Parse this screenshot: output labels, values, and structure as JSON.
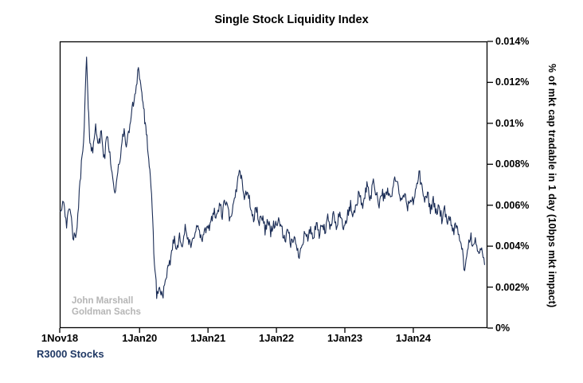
{
  "title": "Single Stock Liquidity Index",
  "y_axis": {
    "title": "% of mkt cap tradable in 1 day (10bps mkt impact)"
  },
  "annotation": {
    "line1": "John Marshall",
    "line2": "Goldman Sachs"
  },
  "footer": {
    "label": "R3000 Stocks"
  },
  "colors": {
    "line": "#1a2c55",
    "axis": "#000000",
    "annotation": "#b5b5b5",
    "footer": "#1f3864",
    "background": "#ffffff"
  },
  "chart_data": {
    "type": "line",
    "title": "Single Stock Liquidity Index",
    "series_name": "R3000 Stocks",
    "xlabel": "",
    "ylabel": "% of mkt cap tradable in 1 day (10bps mkt impact)",
    "x_unit": "months since 1 Nov 2018",
    "x_range": [
      0,
      75
    ],
    "ylim": [
      0,
      0.014
    ],
    "grid": false,
    "legend": "none",
    "y_ticks": [
      {
        "value": 0,
        "label": "0%"
      },
      {
        "value": 0.002,
        "label": "0.002%"
      },
      {
        "value": 0.004,
        "label": "0.004%"
      },
      {
        "value": 0.006,
        "label": "0.006%"
      },
      {
        "value": 0.008,
        "label": "0.008%"
      },
      {
        "value": 0.01,
        "label": "0.01%"
      },
      {
        "value": 0.012,
        "label": "0.012%"
      },
      {
        "value": 0.014,
        "label": "0.014%"
      }
    ],
    "x_ticks": [
      {
        "t": 0,
        "label": "1Nov18"
      },
      {
        "t": 14,
        "label": "1Jan20"
      },
      {
        "t": 26,
        "label": "1Jan21"
      },
      {
        "t": 38,
        "label": "1Jan22"
      },
      {
        "t": 50,
        "label": "1Jan23"
      },
      {
        "t": 62,
        "label": "1Jan24"
      }
    ],
    "noise": {
      "seed": 42,
      "substeps": 4,
      "amplitude": 0.00028
    },
    "points": [
      [
        0,
        0.0057
      ],
      [
        0.7,
        0.0063
      ],
      [
        1.2,
        0.0051
      ],
      [
        1.8,
        0.0058
      ],
      [
        2.3,
        0.0046
      ],
      [
        2.8,
        0.0042
      ],
      [
        3.3,
        0.006
      ],
      [
        3.8,
        0.008
      ],
      [
        4.3,
        0.0098
      ],
      [
        4.7,
        0.0133
      ],
      [
        5,
        0.0106
      ],
      [
        5.3,
        0.0092
      ],
      [
        5.8,
        0.0085
      ],
      [
        6.3,
        0.0101
      ],
      [
        6.8,
        0.0088
      ],
      [
        7.3,
        0.0096
      ],
      [
        7.8,
        0.0082
      ],
      [
        8.3,
        0.0094
      ],
      [
        8.8,
        0.0086
      ],
      [
        9.3,
        0.0072
      ],
      [
        9.8,
        0.0066
      ],
      [
        10.3,
        0.0078
      ],
      [
        10.8,
        0.0088
      ],
      [
        11.3,
        0.0096
      ],
      [
        11.8,
        0.0089
      ],
      [
        12.3,
        0.01
      ],
      [
        12.8,
        0.0108
      ],
      [
        13.3,
        0.0116
      ],
      [
        13.8,
        0.0128
      ],
      [
        14.2,
        0.0118
      ],
      [
        14.6,
        0.0111
      ],
      [
        15,
        0.0098
      ],
      [
        15.4,
        0.009
      ],
      [
        15.8,
        0.0075
      ],
      [
        16.2,
        0.006
      ],
      [
        16.6,
        0.0032
      ],
      [
        17,
        0.0017
      ],
      [
        17.5,
        0.0019
      ],
      [
        18,
        0.0016
      ],
      [
        18.5,
        0.0021
      ],
      [
        19,
        0.0028
      ],
      [
        19.5,
        0.0035
      ],
      [
        20,
        0.0044
      ],
      [
        20.5,
        0.0038
      ],
      [
        21,
        0.0046
      ],
      [
        21.5,
        0.0041
      ],
      [
        22,
        0.0048
      ],
      [
        22.5,
        0.0043
      ],
      [
        23,
        0.0039
      ],
      [
        23.5,
        0.0045
      ],
      [
        24,
        0.0051
      ],
      [
        24.5,
        0.0046
      ],
      [
        25,
        0.0043
      ],
      [
        25.5,
        0.0048
      ],
      [
        26,
        0.0047
      ],
      [
        26.5,
        0.0052
      ],
      [
        27,
        0.0058
      ],
      [
        27.5,
        0.0053
      ],
      [
        28,
        0.0061
      ],
      [
        28.5,
        0.0055
      ],
      [
        29,
        0.0063
      ],
      [
        29.5,
        0.0057
      ],
      [
        30,
        0.0052
      ],
      [
        30.5,
        0.006
      ],
      [
        31,
        0.0068
      ],
      [
        31.5,
        0.0079
      ],
      [
        32,
        0.0071
      ],
      [
        32.5,
        0.0063
      ],
      [
        33,
        0.0068
      ],
      [
        33.5,
        0.0058
      ],
      [
        34,
        0.0053
      ],
      [
        34.5,
        0.0059
      ],
      [
        35,
        0.0051
      ],
      [
        35.5,
        0.0055
      ],
      [
        36,
        0.0048
      ],
      [
        36.5,
        0.0053
      ],
      [
        37,
        0.0047
      ],
      [
        37.5,
        0.0051
      ],
      [
        38,
        0.0049
      ],
      [
        38.5,
        0.0054
      ],
      [
        39,
        0.0047
      ],
      [
        39.5,
        0.0042
      ],
      [
        40,
        0.0047
      ],
      [
        40.5,
        0.0041
      ],
      [
        41,
        0.0045
      ],
      [
        41.5,
        0.0039
      ],
      [
        42,
        0.0036
      ],
      [
        42.5,
        0.0042
      ],
      [
        43,
        0.0047
      ],
      [
        43.5,
        0.0043
      ],
      [
        44,
        0.0049
      ],
      [
        44.5,
        0.0044
      ],
      [
        45,
        0.005
      ],
      [
        45.5,
        0.0045
      ],
      [
        46,
        0.0051
      ],
      [
        46.5,
        0.0047
      ],
      [
        47,
        0.0053
      ],
      [
        47.5,
        0.0049
      ],
      [
        48,
        0.0055
      ],
      [
        48.5,
        0.005
      ],
      [
        49,
        0.0056
      ],
      [
        49.5,
        0.0052
      ],
      [
        50,
        0.0049
      ],
      [
        50.5,
        0.0055
      ],
      [
        51,
        0.006
      ],
      [
        51.5,
        0.0054
      ],
      [
        52,
        0.0061
      ],
      [
        52.5,
        0.0066
      ],
      [
        53,
        0.0059
      ],
      [
        53.5,
        0.0065
      ],
      [
        54,
        0.007
      ],
      [
        54.5,
        0.0063
      ],
      [
        55,
        0.0072
      ],
      [
        55.5,
        0.0066
      ],
      [
        56,
        0.0061
      ],
      [
        56.5,
        0.0067
      ],
      [
        57,
        0.0062
      ],
      [
        57.5,
        0.0068
      ],
      [
        58,
        0.0063
      ],
      [
        58.5,
        0.0069
      ],
      [
        59,
        0.0074
      ],
      [
        59.5,
        0.0065
      ],
      [
        60,
        0.0061
      ],
      [
        60.5,
        0.0066
      ],
      [
        61,
        0.0059
      ],
      [
        61.5,
        0.0063
      ],
      [
        62,
        0.0061
      ],
      [
        62.5,
        0.0069
      ],
      [
        63,
        0.0076
      ],
      [
        63.5,
        0.0068
      ],
      [
        64,
        0.0062
      ],
      [
        64.5,
        0.0066
      ],
      [
        65,
        0.0058
      ],
      [
        65.5,
        0.0062
      ],
      [
        66,
        0.0056
      ],
      [
        66.5,
        0.006
      ],
      [
        67,
        0.0053
      ],
      [
        67.5,
        0.0057
      ],
      [
        68,
        0.005
      ],
      [
        68.5,
        0.0054
      ],
      [
        69,
        0.0047
      ],
      [
        69.5,
        0.0051
      ],
      [
        70,
        0.0044
      ],
      [
        70.5,
        0.004
      ],
      [
        71,
        0.0026
      ],
      [
        71.5,
        0.0038
      ],
      [
        72,
        0.0045
      ],
      [
        72.5,
        0.004
      ],
      [
        73,
        0.0043
      ],
      [
        73.5,
        0.0036
      ],
      [
        74,
        0.0039
      ],
      [
        74.5,
        0.0031
      ]
    ]
  }
}
